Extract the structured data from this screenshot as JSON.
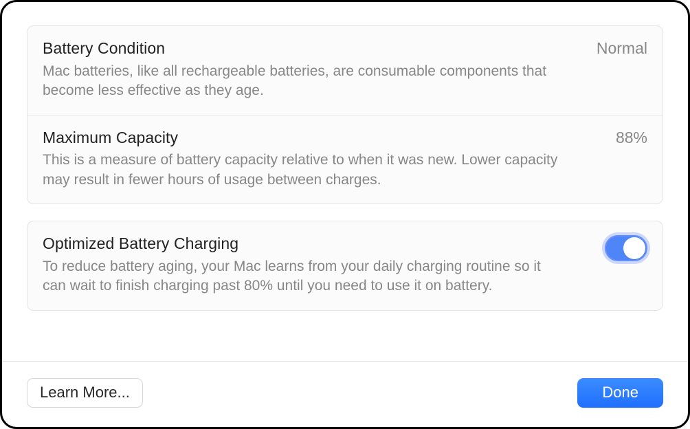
{
  "colors": {
    "window_border": "#000000",
    "window_bg": "#ffffff",
    "card_bg": "#fbfbfb",
    "card_border": "#e4e4e4",
    "divider": "#e8e8e8",
    "title_text": "#222222",
    "secondary_text": "#878787",
    "toggle_on_bg": "#4f86f7",
    "toggle_halo": "#9bb7ff",
    "primary_button_top": "#3c8cff",
    "primary_button_bottom": "#1f6fff",
    "secondary_button_border": "#d8d8d8"
  },
  "sections": {
    "condition": {
      "title": "Battery Condition",
      "value": "Normal",
      "description": "Mac batteries, like all rechargeable batteries, are consumable components that become less effective as they age."
    },
    "capacity": {
      "title": "Maximum Capacity",
      "value": "88%",
      "description": "This is a measure of battery capacity relative to when it was new. Lower capacity may result in fewer hours of usage between charges."
    },
    "optimized": {
      "title": "Optimized Battery Charging",
      "description": "To reduce battery aging, your Mac learns from your daily charging routine so it can wait to finish charging past 80% until you need to use it on battery.",
      "enabled": true
    }
  },
  "footer": {
    "learn_more": "Learn More...",
    "done": "Done"
  }
}
